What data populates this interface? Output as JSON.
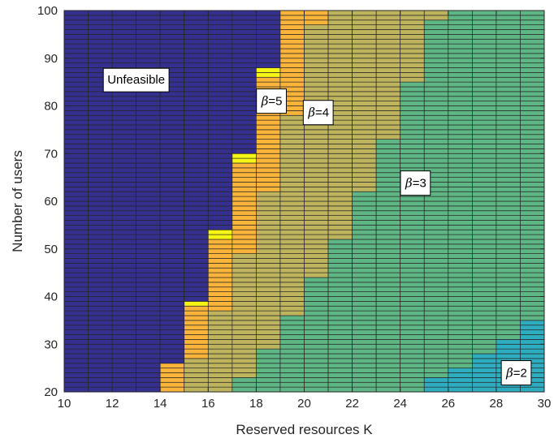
{
  "chart_data": {
    "type": "heatmap",
    "title": "",
    "xlabel": "Reserved resources K",
    "ylabel": "Number of users",
    "xlim": [
      10,
      30
    ],
    "ylim": [
      20,
      100
    ],
    "x_ticks": [
      10,
      12,
      14,
      16,
      18,
      20,
      22,
      24,
      26,
      28,
      30
    ],
    "y_ticks": [
      20,
      30,
      40,
      50,
      60,
      70,
      80,
      90,
      100
    ],
    "grid": "cell edges drawn (K step 1, users step 1)",
    "colors": {
      "unfeasible": "#35308f",
      "beta5": "#fbb43a",
      "beta4": "#bfb45e",
      "beta3": "#5eb684",
      "beta2": "#2eadc1",
      "edge": "#262626",
      "highlight": "#f6f616"
    },
    "regions_note": "For each column K in [K, K+1), the user count at which each beta region starts (cells are beta at/above listed start up to next start). 'u' = unfeasible upper bound start.",
    "columns": [
      {
        "K": 10,
        "unfeasible_from": 20
      },
      {
        "K": 11,
        "unfeasible_from": 20
      },
      {
        "K": 12,
        "unfeasible_from": 20
      },
      {
        "K": 13,
        "unfeasible_from": 20
      },
      {
        "K": 14,
        "beta5_from": 20,
        "unfeasible_from": 26
      },
      {
        "K": 15,
        "beta4_from": 20,
        "beta5_from": 27,
        "unfeasible_from": 38
      },
      {
        "K": 16,
        "beta4_from": 20,
        "beta5_from": 37,
        "unfeasible_from": 53
      },
      {
        "K": 17,
        "beta3_from": 20,
        "beta4_from": 23,
        "beta5_from": 49,
        "unfeasible_from": 69
      },
      {
        "K": 18,
        "beta3_from": 20,
        "beta4_from": 29,
        "beta5_from": 62,
        "unfeasible_from": 87
      },
      {
        "K": 19,
        "beta3_from": 20,
        "beta4_from": 36,
        "beta5_from": 78
      },
      {
        "K": 20,
        "beta3_from": 20,
        "beta4_from": 44,
        "beta5_from": 97
      },
      {
        "K": 21,
        "beta3_from": 20,
        "beta4_from": 52
      },
      {
        "K": 22,
        "beta3_from": 20,
        "beta4_from": 62
      },
      {
        "K": 23,
        "beta3_from": 20,
        "beta4_from": 73
      },
      {
        "K": 24,
        "beta3_from": 20,
        "beta4_from": 85
      },
      {
        "K": 25,
        "beta2_from": 20,
        "beta3_from": 23,
        "beta4_from": 98
      },
      {
        "K": 26,
        "beta2_from": 20,
        "beta3_from": 25
      },
      {
        "K": 27,
        "beta2_from": 20,
        "beta3_from": 28
      },
      {
        "K": 28,
        "beta2_from": 20,
        "beta3_from": 31
      },
      {
        "K": 29,
        "beta2_from": 20,
        "beta3_from": 35
      }
    ],
    "highlight_cells": [
      {
        "K": 15,
        "users": 38
      },
      {
        "K": 16,
        "users": 52
      },
      {
        "K": 16,
        "users": 53
      },
      {
        "K": 17,
        "users": 68
      },
      {
        "K": 17,
        "users": 69
      },
      {
        "K": 18,
        "users": 86
      },
      {
        "K": 18,
        "users": 87
      }
    ],
    "annotations": [
      {
        "id": "unfeasible",
        "text": "Unfeasible",
        "x": 13,
        "y": 85.5
      },
      {
        "id": "beta5",
        "prefix": "β",
        "suffix": "=5",
        "x": 18.65,
        "y": 81
      },
      {
        "id": "beta4",
        "prefix": "β",
        "suffix": "=4",
        "x": 20.6,
        "y": 78.6
      },
      {
        "id": "beta3",
        "prefix": "β",
        "suffix": "=3",
        "x": 24.65,
        "y": 63.8
      },
      {
        "id": "beta2",
        "prefix": "β",
        "suffix": "=2",
        "x": 28.85,
        "y": 24
      }
    ]
  }
}
